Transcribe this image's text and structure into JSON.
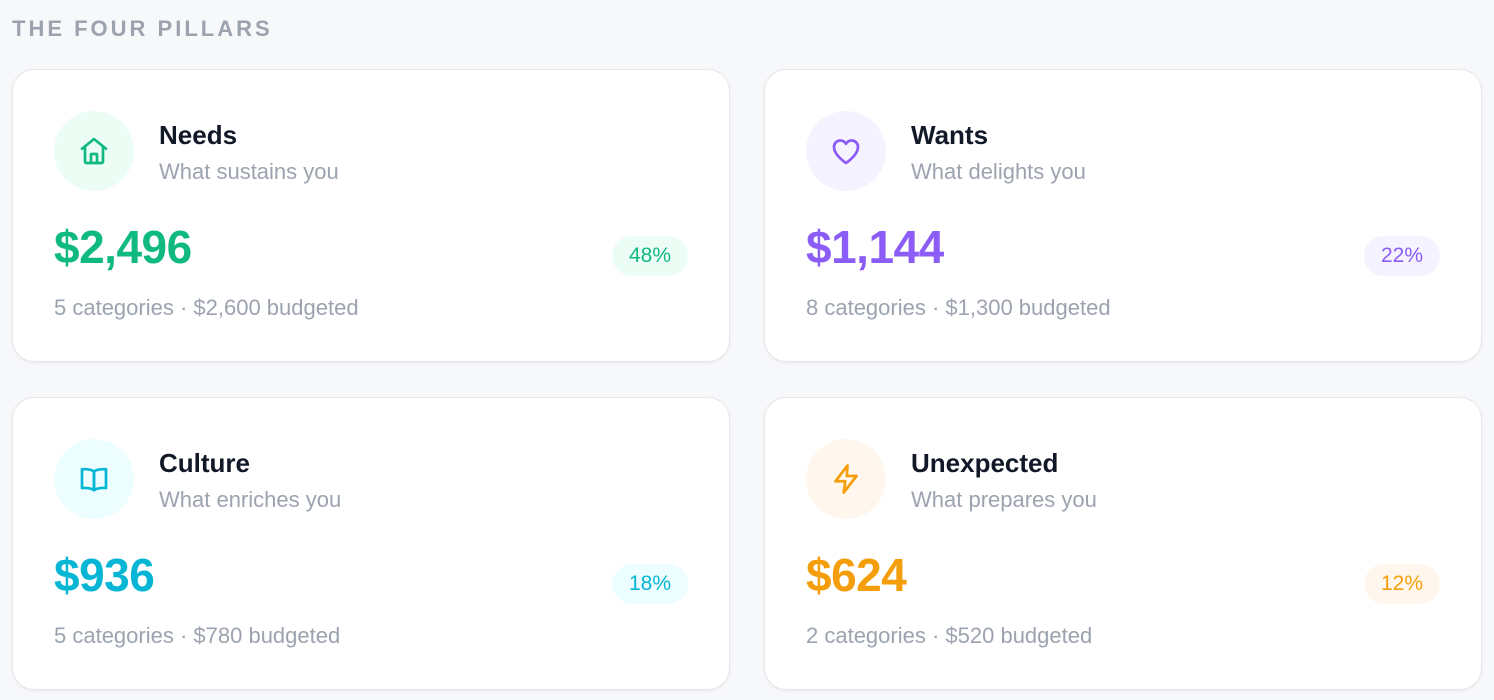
{
  "section": {
    "title": "THE FOUR PILLARS"
  },
  "pillars": [
    {
      "name": "Needs",
      "tagline": "What sustains you",
      "amount": "$2,496",
      "percent": "48%",
      "meta": "5 categories · $2,600 budgeted",
      "icon": "home-icon",
      "accent": "#10b981",
      "tint": "#ecfdf5"
    },
    {
      "name": "Wants",
      "tagline": "What delights you",
      "amount": "$1,144",
      "percent": "22%",
      "meta": "8 categories · $1,300 budgeted",
      "icon": "heart-icon",
      "accent": "#8b5cf6",
      "tint": "#f5f3ff"
    },
    {
      "name": "Culture",
      "tagline": "What enriches you",
      "amount": "$936",
      "percent": "18%",
      "meta": "5 categories · $780 budgeted",
      "icon": "book-icon",
      "accent": "#06b6d4",
      "tint": "#ecfeff"
    },
    {
      "name": "Unexpected",
      "tagline": "What prepares you",
      "amount": "$624",
      "percent": "12%",
      "meta": "2 categories · $520 budgeted",
      "icon": "lightning-icon",
      "accent": "#f59e0b",
      "tint": "#fff7ed"
    }
  ]
}
